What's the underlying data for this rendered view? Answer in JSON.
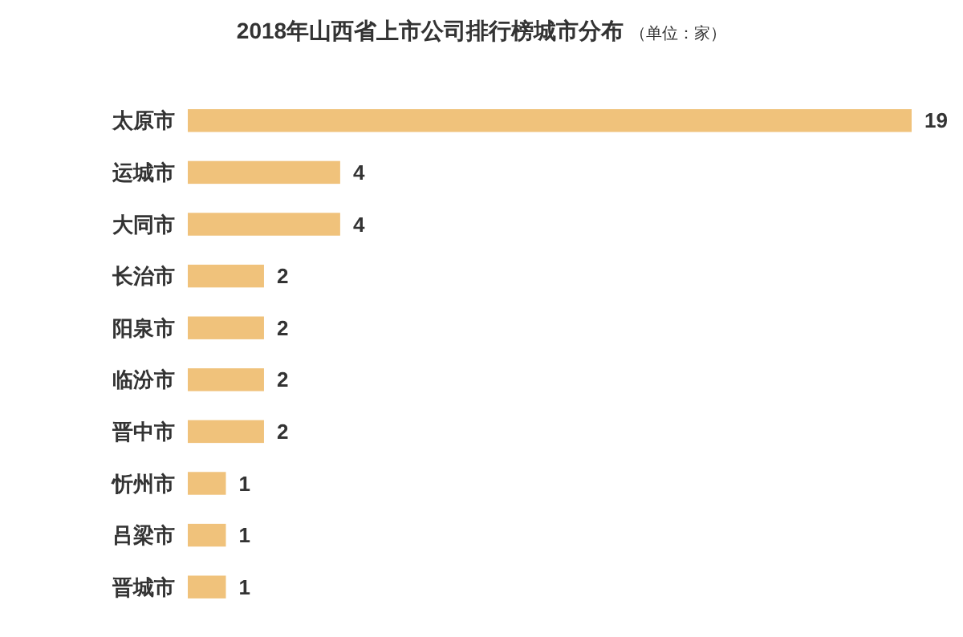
{
  "chart_data": {
    "type": "bar",
    "orientation": "horizontal",
    "title": "2018年山西省上市公司排行榜城市分布",
    "subtitle": "（单位：家）",
    "categories": [
      "太原市",
      "运城市",
      "大同市",
      "长治市",
      "阳泉市",
      "临汾市",
      "晋中市",
      "忻州市",
      "吕梁市",
      "晋城市"
    ],
    "values": [
      19,
      4,
      4,
      2,
      2,
      2,
      2,
      1,
      1,
      1
    ],
    "color": "#f0c27b",
    "data_labels": true
  }
}
